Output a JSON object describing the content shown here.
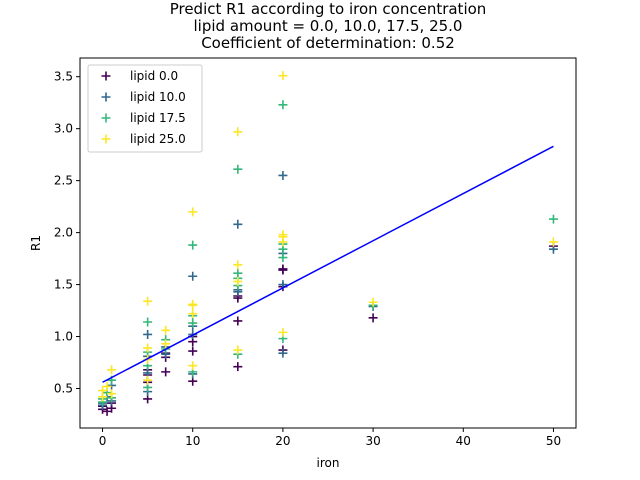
{
  "chart_data": {
    "type": "scatter",
    "title_lines": [
      "Predict R1 according to iron concentration",
      "lipid amount = 0.0, 10.0, 17.5, 25.0",
      "Coefficient of determination: 0.52"
    ],
    "xlabel": "iron",
    "ylabel": "R1",
    "xlim": [
      -2.5,
      52.5
    ],
    "ylim": [
      0.12,
      3.68
    ],
    "xticks": [
      0,
      10,
      20,
      30,
      40,
      50
    ],
    "yticks": [
      0.5,
      1.0,
      1.5,
      2.0,
      2.5,
      3.0,
      3.5
    ],
    "xtick_labels": [
      "0",
      "10",
      "20",
      "30",
      "40",
      "50"
    ],
    "ytick_labels": [
      "0.5",
      "1.0",
      "1.5",
      "2.0",
      "2.5",
      "3.0",
      "3.5"
    ],
    "grid": false,
    "legend_position": "top-left",
    "series": [
      {
        "name": "lipid 0.0",
        "color": "#440154",
        "marker": "plus",
        "points": [
          [
            0,
            0.3
          ],
          [
            0,
            0.33
          ],
          [
            0.5,
            0.28
          ],
          [
            1,
            0.31
          ],
          [
            1,
            0.36
          ],
          [
            5,
            0.4
          ],
          [
            5,
            0.56
          ],
          [
            5,
            0.63
          ],
          [
            5,
            0.68
          ],
          [
            7,
            0.66
          ],
          [
            7,
            0.8
          ],
          [
            7,
            0.84
          ],
          [
            10,
            0.57
          ],
          [
            10,
            0.86
          ],
          [
            10,
            0.95
          ],
          [
            10,
            1.0
          ],
          [
            15,
            0.71
          ],
          [
            15,
            1.15
          ],
          [
            15,
            1.37
          ],
          [
            15,
            1.39
          ],
          [
            20,
            0.87
          ],
          [
            20,
            1.48
          ],
          [
            20,
            1.64
          ],
          [
            20,
            1.65
          ],
          [
            30,
            1.18
          ],
          [
            50,
            1.87
          ]
        ]
      },
      {
        "name": "lipid 10.0",
        "color": "#31688e",
        "marker": "plus",
        "points": [
          [
            0,
            0.34
          ],
          [
            0,
            0.36
          ],
          [
            0.5,
            0.42
          ],
          [
            1,
            0.38
          ],
          [
            1,
            0.53
          ],
          [
            5,
            0.47
          ],
          [
            5,
            0.65
          ],
          [
            5,
            0.81
          ],
          [
            5,
            1.02
          ],
          [
            7,
            0.83
          ],
          [
            7,
            0.9
          ],
          [
            10,
            0.64
          ],
          [
            10,
            1.02
          ],
          [
            10,
            1.1
          ],
          [
            10,
            1.58
          ],
          [
            15,
            1.43
          ],
          [
            15,
            1.45
          ],
          [
            15,
            2.08
          ],
          [
            20,
            0.84
          ],
          [
            20,
            1.5
          ],
          [
            20,
            1.8
          ],
          [
            20,
            2.55
          ],
          [
            30,
            1.29
          ],
          [
            50,
            1.84
          ]
        ]
      },
      {
        "name": "lipid 17.5",
        "color": "#35b779",
        "marker": "plus",
        "points": [
          [
            0,
            0.37
          ],
          [
            0,
            0.4
          ],
          [
            0.5,
            0.46
          ],
          [
            1,
            0.41
          ],
          [
            1,
            0.58
          ],
          [
            5,
            0.51
          ],
          [
            5,
            0.72
          ],
          [
            5,
            0.85
          ],
          [
            5,
            1.14
          ],
          [
            7,
            0.88
          ],
          [
            7,
            0.97
          ],
          [
            10,
            0.66
          ],
          [
            10,
            1.13
          ],
          [
            10,
            1.2
          ],
          [
            10,
            1.88
          ],
          [
            15,
            0.83
          ],
          [
            15,
            1.49
          ],
          [
            15,
            1.56
          ],
          [
            15,
            1.61
          ],
          [
            15,
            2.61
          ],
          [
            20,
            0.98
          ],
          [
            20,
            1.76
          ],
          [
            20,
            1.84
          ],
          [
            20,
            1.89
          ],
          [
            20,
            3.23
          ],
          [
            30,
            1.3
          ],
          [
            50,
            2.13
          ]
        ]
      },
      {
        "name": "lipid 25.0",
        "color": "#fde725",
        "marker": "plus",
        "points": [
          [
            0,
            0.42
          ],
          [
            0,
            0.48
          ],
          [
            0.5,
            0.52
          ],
          [
            1,
            0.45
          ],
          [
            1,
            0.68
          ],
          [
            5,
            0.58
          ],
          [
            5,
            0.78
          ],
          [
            5,
            0.89
          ],
          [
            5,
            1.34
          ],
          [
            7,
            0.93
          ],
          [
            7,
            1.06
          ],
          [
            10,
            0.72
          ],
          [
            10,
            1.22
          ],
          [
            10,
            1.3
          ],
          [
            10,
            1.31
          ],
          [
            10,
            2.2
          ],
          [
            15,
            0.87
          ],
          [
            15,
            1.53
          ],
          [
            15,
            1.69
          ],
          [
            15,
            2.97
          ],
          [
            20,
            1.04
          ],
          [
            20,
            1.91
          ],
          [
            20,
            1.96
          ],
          [
            20,
            1.98
          ],
          [
            20,
            3.51
          ],
          [
            30,
            1.33
          ],
          [
            50,
            1.91
          ]
        ]
      }
    ],
    "fit_line": {
      "color": "#0000ff",
      "points": [
        [
          0,
          0.56
        ],
        [
          50,
          2.83
        ]
      ]
    }
  }
}
